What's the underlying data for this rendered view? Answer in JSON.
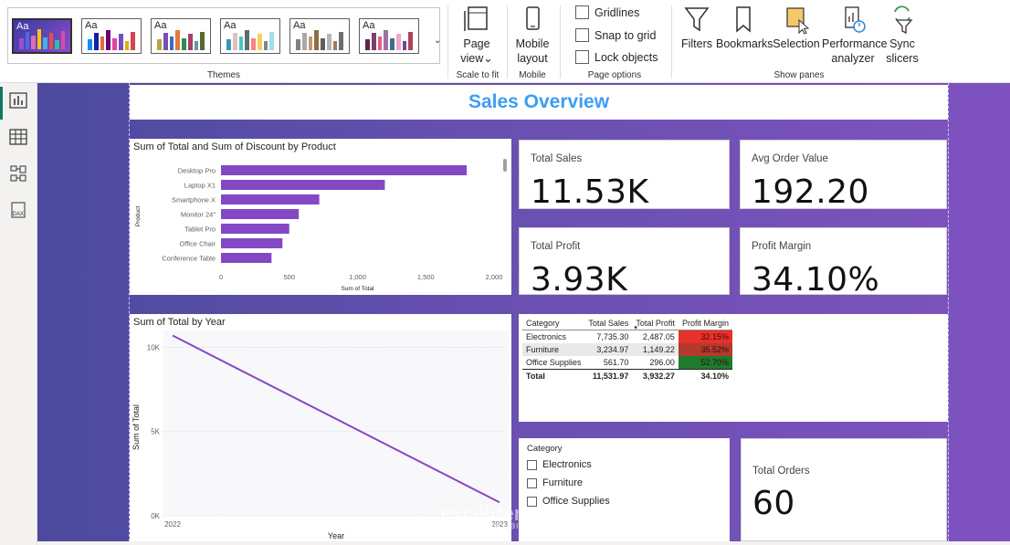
{
  "ribbon": {
    "themes_label": "Themes",
    "themes": [
      {
        "aa": "Aa",
        "colors": [
          "#9b4fd8",
          "#4f6ae0",
          "#e06ab8",
          "#f2c811",
          "#3fb0e8",
          "#e05050",
          "#30c0a0",
          "#d84ab0"
        ]
      },
      {
        "aa": "Aa",
        "colors": [
          "#118dff",
          "#12239e",
          "#e66c37",
          "#6b007b",
          "#e044a7",
          "#744ec2",
          "#d9b300",
          "#d64550"
        ]
      },
      {
        "aa": "Aa",
        "colors": [
          "#b5a642",
          "#7a4fb0",
          "#3b6ec9",
          "#e07b39",
          "#2e8b57",
          "#a94064",
          "#5f9ea0",
          "#556b2f"
        ]
      },
      {
        "aa": "Aa",
        "colors": [
          "#3599b8",
          "#dfbfbf",
          "#4ac5bb",
          "#5f6b6d",
          "#fb8281",
          "#f4d25a",
          "#7f898a",
          "#a4ddee"
        ]
      },
      {
        "aa": "Aa",
        "colors": [
          "#7f7f7f",
          "#a9a9a9",
          "#c49a6c",
          "#8b6f47",
          "#5e5e5e",
          "#b5b5b5",
          "#9e7c5a",
          "#6e6e6e"
        ]
      },
      {
        "aa": "Aa",
        "colors": [
          "#5e2750",
          "#7b3f6e",
          "#e45d8d",
          "#a26ea1",
          "#3c6e91",
          "#f0a6ca",
          "#6a4c93",
          "#b33f62"
        ]
      }
    ],
    "theme_dropdown": "⌄",
    "page_view": {
      "label1": "Page",
      "label2": "view",
      "caret": "⌄",
      "group": "Scale to fit"
    },
    "mobile": {
      "label1": "Mobile",
      "label2": "layout",
      "group": "Mobile"
    },
    "page_options": {
      "gridlines": "Gridlines",
      "snap": "Snap to grid",
      "lock": "Lock objects",
      "group": "Page options"
    },
    "show_panes": {
      "filters": "Filters",
      "bookmarks": "Bookmarks",
      "selection": "Selection",
      "performance1": "Performance",
      "performance2": "analyzer",
      "sync1": "Sync",
      "sync2": "slicers",
      "group": "Show panes"
    }
  },
  "report": {
    "title": "Sales Overview",
    "bar_visual_title": "Sum of Total and Sum of Discount by Product",
    "line_visual_title": "Sum of Total by Year",
    "cards": {
      "total_sales": {
        "label": "Total Sales",
        "value": "11.53K"
      },
      "avg_order": {
        "label": "Avg Order Value",
        "value": "192.20"
      },
      "total_profit": {
        "label": "Total Profit",
        "value": "3.93K"
      },
      "profit_margin": {
        "label": "Profit Margin",
        "value": "34.10%"
      },
      "total_orders": {
        "label": "Total Orders",
        "value": "60"
      }
    },
    "matrix": {
      "headers": [
        "Category",
        "Total Sales",
        "Total Profit",
        "Profit Margin"
      ],
      "sort_indicator": "▾",
      "rows": [
        {
          "category": "Electronics",
          "sales": "7,735.30",
          "profit": "2,487.05",
          "margin": "32.15%",
          "margin_color": "#e8312a"
        },
        {
          "category": "Furniture",
          "sales": "3,234.97",
          "profit": "1,149.22",
          "margin": "35.52%",
          "margin_color": "#b43a2e"
        },
        {
          "category": "Office Supplies",
          "sales": "561.70",
          "profit": "296.00",
          "margin": "52.70%",
          "margin_color": "#1e7b2e"
        }
      ],
      "total": {
        "label": "Total",
        "sales": "11,531.97",
        "profit": "3,932.27",
        "margin": "34.10%"
      }
    },
    "slicer": {
      "title": "Category",
      "items": [
        "Electronics",
        "Furniture",
        "Office Supplies"
      ]
    },
    "watermark": "exceldemy",
    "watermark_sub": "EXCEL · DATA · BI"
  },
  "chart_data": [
    {
      "type": "bar",
      "title": "Sum of Total and Sum of Discount by Product",
      "xlabel": "Sum of Total",
      "ylabel": "Product",
      "categories": [
        "Desktop Pro",
        "Laptop X1",
        "Smartphone X",
        "Monitor 24\"",
        "Tablet Pro",
        "Office Chair",
        "Conference Table"
      ],
      "values": [
        1800,
        1200,
        720,
        570,
        500,
        450,
        370
      ],
      "xlim": [
        0,
        2000
      ],
      "xticks": [
        "0",
        "500",
        "1,000",
        "1,500",
        "2,000"
      ],
      "color": "#8548c4"
    },
    {
      "type": "line",
      "title": "Sum of Total by Year",
      "xlabel": "Year",
      "ylabel": "Sum of Total",
      "x": [
        "2022",
        "2023"
      ],
      "values": [
        10700,
        800
      ],
      "ylim": [
        0,
        11000
      ],
      "yticks": [
        {
          "v": 0,
          "t": "0K"
        },
        {
          "v": 5000,
          "t": "5K"
        },
        {
          "v": 10000,
          "t": "10K"
        }
      ],
      "color": "#8548c4"
    }
  ]
}
